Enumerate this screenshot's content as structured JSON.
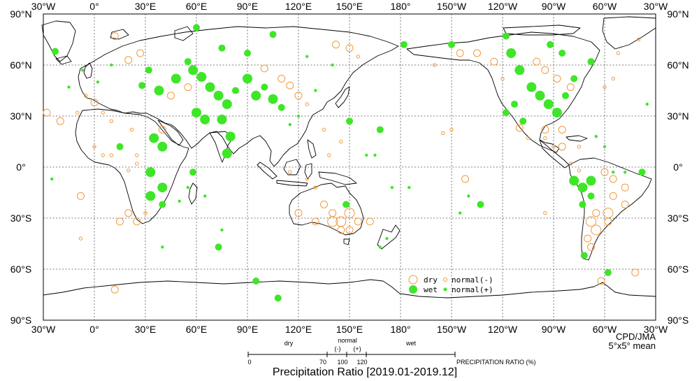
{
  "map": {
    "lon_labels": [
      "30°W",
      "0°",
      "30°E",
      "60°E",
      "90°E",
      "120°E",
      "150°E",
      "180°",
      "150°W",
      "120°W",
      "90°W",
      "60°W",
      "30°W"
    ],
    "lat_labels": [
      "90°N",
      "60°N",
      "30°N",
      "0°",
      "30°S",
      "60°S",
      "90°S"
    ],
    "credit": "CPD/JMA",
    "grid_note": "5°x5° mean",
    "title": "Precipitation Ratio [2019.01-2019.12]"
  },
  "legend": {
    "dry": "dry",
    "wet": "wet",
    "normal_minus": "normal(-)",
    "normal_plus": "normal(+)"
  },
  "scale": {
    "dry": "dry",
    "normal": "normal",
    "minus": "(-)",
    "plus": "(+)",
    "wet": "wet",
    "ticks": [
      "0",
      "70",
      "100",
      "120"
    ],
    "axis_label": "PRECIPITATION RATIO  (%)"
  },
  "colors": {
    "dry": "#f29a3a",
    "wet": "#3fe628",
    "land": "#000000",
    "grid": "#555555"
  },
  "stations": [
    {
      "lon": -23,
      "lat": 68,
      "c": "wet",
      "s": 2
    },
    {
      "lon": 0,
      "lat": 38,
      "c": "dry",
      "s": 2
    },
    {
      "lon": 12,
      "lat": 77,
      "c": "dry",
      "s": 2
    },
    {
      "lon": 20,
      "lat": 63,
      "c": "dry",
      "s": 2
    },
    {
      "lon": 27,
      "lat": 67,
      "c": "dry",
      "s": 2
    },
    {
      "lon": 32,
      "lat": 57,
      "c": "wet",
      "s": 2
    },
    {
      "lon": 28,
      "lat": 48,
      "c": "wet",
      "s": 2
    },
    {
      "lon": 38,
      "lat": 45,
      "c": "wet",
      "s": 3
    },
    {
      "lon": 48,
      "lat": 52,
      "c": "wet",
      "s": 3
    },
    {
      "lon": 55,
      "lat": 62,
      "c": "wet",
      "s": 2
    },
    {
      "lon": 58,
      "lat": 57,
      "c": "wet",
      "s": 3
    },
    {
      "lon": 63,
      "lat": 53,
      "c": "wet",
      "s": 3
    },
    {
      "lon": 68,
      "lat": 47,
      "c": "wet",
      "s": 3
    },
    {
      "lon": 73,
      "lat": 42,
      "c": "wet",
      "s": 3
    },
    {
      "lon": 78,
      "lat": 37,
      "c": "wet",
      "s": 3
    },
    {
      "lon": 83,
      "lat": 45,
      "c": "wet",
      "s": 2
    },
    {
      "lon": 90,
      "lat": 52,
      "c": "wet",
      "s": 3
    },
    {
      "lon": 95,
      "lat": 42,
      "c": "wet",
      "s": 3
    },
    {
      "lon": 100,
      "lat": 47,
      "c": "wet",
      "s": 2
    },
    {
      "lon": 105,
      "lat": 40,
      "c": "wet",
      "s": 3
    },
    {
      "lon": 110,
      "lat": 35,
      "c": "wet",
      "s": 2
    },
    {
      "lon": 60,
      "lat": 82,
      "c": "wet",
      "s": 2
    },
    {
      "lon": 105,
      "lat": 78,
      "c": "wet",
      "s": 2
    },
    {
      "lon": 90,
      "lat": 67,
      "c": "wet",
      "s": 2
    },
    {
      "lon": 75,
      "lat": 70,
      "c": "wet",
      "s": 2
    },
    {
      "lon": 60,
      "lat": 32,
      "c": "wet",
      "s": 3
    },
    {
      "lon": 65,
      "lat": 28,
      "c": "wet",
      "s": 3
    },
    {
      "lon": 75,
      "lat": 28,
      "c": "wet",
      "s": 3
    },
    {
      "lon": 80,
      "lat": 18,
      "c": "wet",
      "s": 3
    },
    {
      "lon": 78,
      "lat": 8,
      "c": "wet",
      "s": 3
    },
    {
      "lon": 35,
      "lat": 17,
      "c": "wet",
      "s": 3
    },
    {
      "lon": 40,
      "lat": 12,
      "c": "wet",
      "s": 3
    },
    {
      "lon": 33,
      "lat": -3,
      "c": "wet",
      "s": 3
    },
    {
      "lon": 40,
      "lat": -12,
      "c": "wet",
      "s": 3
    },
    {
      "lon": 33,
      "lat": -17,
      "c": "wet",
      "s": 3
    },
    {
      "lon": 40,
      "lat": -22,
      "c": "wet",
      "s": 2
    },
    {
      "lon": 58,
      "lat": -3,
      "c": "wet",
      "s": 2
    },
    {
      "lon": 73,
      "lat": -47,
      "c": "wet",
      "s": 2
    },
    {
      "lon": 95,
      "lat": -67,
      "c": "wet",
      "s": 2
    },
    {
      "lon": 108,
      "lat": -77,
      "c": "wet",
      "s": 2
    },
    {
      "lon": 15,
      "lat": 12,
      "c": "wet",
      "s": 2
    },
    {
      "lon": 148,
      "lat": -22,
      "c": "wet",
      "s": 2
    },
    {
      "lon": 150,
      "lat": 27,
      "c": "wet",
      "s": 2
    },
    {
      "lon": 168,
      "lat": 22,
      "c": "wet",
      "s": 2
    },
    {
      "lon": -178,
      "lat": 72,
      "c": "wet",
      "s": 2
    },
    {
      "lon": -150,
      "lat": 72,
      "c": "wet",
      "s": 2
    },
    {
      "lon": -133,
      "lat": -22,
      "c": "wet",
      "s": 2
    },
    {
      "lon": -118,
      "lat": 77,
      "c": "wet",
      "s": 2
    },
    {
      "lon": -115,
      "lat": 67,
      "c": "wet",
      "s": 3
    },
    {
      "lon": -110,
      "lat": 57,
      "c": "wet",
      "s": 3
    },
    {
      "lon": -103,
      "lat": 47,
      "c": "wet",
      "s": 3
    },
    {
      "lon": -98,
      "lat": 42,
      "c": "wet",
      "s": 3
    },
    {
      "lon": -93,
      "lat": 37,
      "c": "wet",
      "s": 3
    },
    {
      "lon": -88,
      "lat": 32,
      "c": "wet",
      "s": 3
    },
    {
      "lon": -83,
      "lat": 42,
      "c": "wet",
      "s": 2
    },
    {
      "lon": -118,
      "lat": 32,
      "c": "wet",
      "s": 2
    },
    {
      "lon": -113,
      "lat": 37,
      "c": "wet",
      "s": 2
    },
    {
      "lon": -108,
      "lat": 27,
      "c": "wet",
      "s": 2
    },
    {
      "lon": -92,
      "lat": 72,
      "c": "wet",
      "s": 2
    },
    {
      "lon": -85,
      "lat": 67,
      "c": "wet",
      "s": 2
    },
    {
      "lon": -78,
      "lat": 52,
      "c": "wet",
      "s": 2
    },
    {
      "lon": -68,
      "lat": 62,
      "c": "wet",
      "s": 2
    },
    {
      "lon": -78,
      "lat": -8,
      "c": "wet",
      "s": 3
    },
    {
      "lon": -73,
      "lat": -12,
      "c": "wet",
      "s": 3
    },
    {
      "lon": -68,
      "lat": -8,
      "c": "wet",
      "s": 3
    },
    {
      "lon": -68,
      "lat": -17,
      "c": "wet",
      "s": 2
    },
    {
      "lon": -73,
      "lat": -22,
      "c": "wet",
      "s": 2
    },
    {
      "lon": -72,
      "lat": -52,
      "c": "wet",
      "s": 2
    },
    {
      "lon": -58,
      "lat": -62,
      "c": "wet",
      "s": 2
    },
    {
      "lon": -38,
      "lat": -3,
      "c": "wet",
      "s": 2
    },
    {
      "lon": -48,
      "lat": -3,
      "c": "wet",
      "s": 1
    },
    {
      "lon": 10,
      "lat": 60,
      "c": "wet",
      "s": 1
    },
    {
      "lon": 2,
      "lat": 50,
      "c": "wet",
      "s": 1
    },
    {
      "lon": 125,
      "lat": 65,
      "c": "wet",
      "s": 1
    },
    {
      "lon": 140,
      "lat": 60,
      "c": "wet",
      "s": 1
    },
    {
      "lon": 130,
      "lat": 45,
      "c": "wet",
      "s": 1
    },
    {
      "lon": 120,
      "lat": 30,
      "c": "wet",
      "s": 1
    },
    {
      "lon": 115,
      "lat": 25,
      "c": "wet",
      "s": 1
    },
    {
      "lon": 160,
      "lat": 7,
      "c": "wet",
      "s": 1
    },
    {
      "lon": 165,
      "lat": 7,
      "c": "wet",
      "s": 1
    },
    {
      "lon": 175,
      "lat": -12,
      "c": "wet",
      "s": 1
    },
    {
      "lon": 185,
      "lat": -12,
      "c": "wet",
      "s": 1
    },
    {
      "lon": 172,
      "lat": -42,
      "c": "wet",
      "s": 1
    },
    {
      "lon": 168,
      "lat": -47,
      "c": "wet",
      "s": 1
    },
    {
      "lon": -145,
      "lat": -27,
      "c": "wet",
      "s": 1
    },
    {
      "lon": -140,
      "lat": -17,
      "c": "wet",
      "s": 1
    },
    {
      "lon": -65,
      "lat": 18,
      "c": "wet",
      "s": 1
    },
    {
      "lon": -60,
      "lat": 12,
      "c": "wet",
      "s": 1
    },
    {
      "lon": -55,
      "lat": -3,
      "c": "wet",
      "s": 1
    },
    {
      "lon": 50,
      "lat": -20,
      "c": "wet",
      "s": 1
    },
    {
      "lon": 55,
      "lat": -12,
      "c": "wet",
      "s": 1
    },
    {
      "lon": 65,
      "lat": -17,
      "c": "wet",
      "s": 1
    },
    {
      "lon": 75,
      "lat": -37,
      "c": "wet",
      "s": 1
    },
    {
      "lon": 40,
      "lat": -47,
      "c": "wet",
      "s": 1
    },
    {
      "lon": -35,
      "lat": 37,
      "c": "wet",
      "s": 1
    },
    {
      "lon": -25,
      "lat": -7,
      "c": "wet",
      "s": 1
    },
    {
      "lon": -15,
      "lat": 47,
      "c": "wet",
      "s": 1
    },
    {
      "lon": -7,
      "lat": 57,
      "c": "wet",
      "s": 1
    },
    {
      "lon": -28,
      "lat": 32,
      "c": "dry",
      "s": 2
    },
    {
      "lon": -20,
      "lat": 27,
      "c": "dry",
      "s": 2
    },
    {
      "lon": -8,
      "lat": -17,
      "c": "dry",
      "s": 2
    },
    {
      "lon": -8,
      "lat": -42,
      "c": "dry",
      "s": 1
    },
    {
      "lon": 20,
      "lat": -27,
      "c": "dry",
      "s": 2
    },
    {
      "lon": 25,
      "lat": -32,
      "c": "dry",
      "s": 2
    },
    {
      "lon": 15,
      "lat": -32,
      "c": "dry",
      "s": 2
    },
    {
      "lon": 12,
      "lat": -72,
      "c": "dry",
      "s": 2
    },
    {
      "lon": 55,
      "lat": 47,
      "c": "dry",
      "s": 2
    },
    {
      "lon": 45,
      "lat": 42,
      "c": "dry",
      "s": 2
    },
    {
      "lon": 40,
      "lat": 22,
      "c": "dry",
      "s": 2
    },
    {
      "lon": 115,
      "lat": 48,
      "c": "dry",
      "s": 2
    },
    {
      "lon": 120,
      "lat": 42,
      "c": "dry",
      "s": 2
    },
    {
      "lon": 135,
      "lat": 22,
      "c": "dry",
      "s": 1
    },
    {
      "lon": 138,
      "lat": 7,
      "c": "dry",
      "s": 1
    },
    {
      "lon": 115,
      "lat": -3,
      "c": "dry",
      "s": 1
    },
    {
      "lon": 125,
      "lat": -7,
      "c": "dry",
      "s": 1
    },
    {
      "lon": 130,
      "lat": -12,
      "c": "dry",
      "s": 1
    },
    {
      "lon": 135,
      "lat": -22,
      "c": "dry",
      "s": 2
    },
    {
      "lon": 140,
      "lat": -27,
      "c": "dry",
      "s": 2
    },
    {
      "lon": 145,
      "lat": -32,
      "c": "dry",
      "s": 3
    },
    {
      "lon": 150,
      "lat": -27,
      "c": "dry",
      "s": 3
    },
    {
      "lon": 155,
      "lat": -32,
      "c": "dry",
      "s": 2
    },
    {
      "lon": 140,
      "lat": -32,
      "c": "dry",
      "s": 3
    },
    {
      "lon": 130,
      "lat": -32,
      "c": "dry",
      "s": 2
    },
    {
      "lon": 120,
      "lat": -27,
      "c": "dry",
      "s": 2
    },
    {
      "lon": 150,
      "lat": -37,
      "c": "dry",
      "s": 2
    },
    {
      "lon": 145,
      "lat": -37,
      "c": "dry",
      "s": 2
    },
    {
      "lon": 162,
      "lat": -32,
      "c": "dry",
      "s": 2
    },
    {
      "lon": 142,
      "lat": 72,
      "c": "dry",
      "s": 2
    },
    {
      "lon": 150,
      "lat": 70,
      "c": "dry",
      "s": 2
    },
    {
      "lon": 155,
      "lat": 65,
      "c": "dry",
      "s": 1
    },
    {
      "lon": 100,
      "lat": 58,
      "c": "dry",
      "s": 2
    },
    {
      "lon": 110,
      "lat": 52,
      "c": "dry",
      "s": 2
    },
    {
      "lon": 125,
      "lat": 37,
      "c": "dry",
      "s": 1
    },
    {
      "lon": -142,
      "lat": -7,
      "c": "dry",
      "s": 2
    },
    {
      "lon": -120,
      "lat": 52,
      "c": "dry",
      "s": 1
    },
    {
      "lon": -110,
      "lat": 23,
      "c": "dry",
      "s": 2
    },
    {
      "lon": -105,
      "lat": 17,
      "c": "dry",
      "s": 1
    },
    {
      "lon": -95,
      "lat": 17,
      "c": "dry",
      "s": 1
    },
    {
      "lon": -90,
      "lat": 12,
      "c": "dry",
      "s": 1
    },
    {
      "lon": -85,
      "lat": 12,
      "c": "dry",
      "s": 2
    },
    {
      "lon": -95,
      "lat": 22,
      "c": "dry",
      "s": 2
    },
    {
      "lon": -85,
      "lat": 22,
      "c": "dry",
      "s": 2
    },
    {
      "lon": -75,
      "lat": 12,
      "c": "dry",
      "s": 1
    },
    {
      "lon": -80,
      "lat": 2,
      "c": "dry",
      "s": 1
    },
    {
      "lon": -75,
      "lat": -2,
      "c": "dry",
      "s": 1
    },
    {
      "lon": -60,
      "lat": -3,
      "c": "dry",
      "s": 2
    },
    {
      "lon": -55,
      "lat": -7,
      "c": "dry",
      "s": 2
    },
    {
      "lon": -48,
      "lat": -12,
      "c": "dry",
      "s": 2
    },
    {
      "lon": -55,
      "lat": -17,
      "c": "dry",
      "s": 2
    },
    {
      "lon": -48,
      "lat": -22,
      "c": "dry",
      "s": 2
    },
    {
      "lon": -58,
      "lat": -27,
      "c": "dry",
      "s": 3
    },
    {
      "lon": -65,
      "lat": -27,
      "c": "dry",
      "s": 2
    },
    {
      "lon": -68,
      "lat": -32,
      "c": "dry",
      "s": 3
    },
    {
      "lon": -65,
      "lat": -37,
      "c": "dry",
      "s": 3
    },
    {
      "lon": -70,
      "lat": -42,
      "c": "dry",
      "s": 2
    },
    {
      "lon": -68,
      "lat": -47,
      "c": "dry",
      "s": 2
    },
    {
      "lon": -58,
      "lat": -32,
      "c": "dry",
      "s": 2
    },
    {
      "lon": -62,
      "lat": -67,
      "c": "dry",
      "s": 2
    },
    {
      "lon": -42,
      "lat": -62,
      "c": "dry",
      "s": 2
    },
    {
      "lon": -95,
      "lat": -27,
      "c": "dry",
      "s": 1
    },
    {
      "lon": -150,
      "lat": 22,
      "c": "dry",
      "s": 1
    },
    {
      "lon": -155,
      "lat": 20,
      "c": "dry",
      "s": 1
    },
    {
      "lon": 145,
      "lat": 15,
      "c": "dry",
      "s": 1
    },
    {
      "lon": -100,
      "lat": 62,
      "c": "dry",
      "s": 2
    },
    {
      "lon": -95,
      "lat": 57,
      "c": "dry",
      "s": 2
    },
    {
      "lon": -88,
      "lat": 52,
      "c": "dry",
      "s": 2
    },
    {
      "lon": -80,
      "lat": 47,
      "c": "dry",
      "s": 2
    },
    {
      "lon": -60,
      "lat": 47,
      "c": "dry",
      "s": 1
    },
    {
      "lon": -55,
      "lat": 52,
      "c": "dry",
      "s": 1
    },
    {
      "lon": -145,
      "lat": 67,
      "c": "dry",
      "s": 2
    },
    {
      "lon": -135,
      "lat": 67,
      "c": "dry",
      "s": 2
    },
    {
      "lon": -125,
      "lat": 62,
      "c": "dry",
      "s": 2
    },
    {
      "lon": -160,
      "lat": 60,
      "c": "dry",
      "s": 1
    },
    {
      "lon": -40,
      "lat": 75,
      "c": "dry",
      "s": 1
    },
    {
      "lon": -52,
      "lat": 67,
      "c": "dry",
      "s": 1
    },
    {
      "lon": 0,
      "lat": 12,
      "c": "dry",
      "s": 1
    },
    {
      "lon": 5,
      "lat": 7,
      "c": "dry",
      "s": 1
    },
    {
      "lon": 10,
      "lat": 7,
      "c": "dry",
      "s": 1
    },
    {
      "lon": 25,
      "lat": 7,
      "c": "dry",
      "s": 1
    },
    {
      "lon": 25,
      "lat": 2,
      "c": "dry",
      "s": 1
    },
    {
      "lon": 20,
      "lat": -2,
      "c": "dry",
      "s": 1
    },
    {
      "lon": 30,
      "lat": -27,
      "c": "dry",
      "s": 1
    },
    {
      "lon": 22,
      "lat": 22,
      "c": "dry",
      "s": 1
    },
    {
      "lon": 10,
      "lat": 27,
      "c": "dry",
      "s": 1
    },
    {
      "lon": 5,
      "lat": 32,
      "c": "dry",
      "s": 1
    },
    {
      "lon": -10,
      "lat": 32,
      "c": "dry",
      "s": 1
    },
    {
      "lon": -5,
      "lat": 42,
      "c": "dry",
      "s": 1
    }
  ]
}
